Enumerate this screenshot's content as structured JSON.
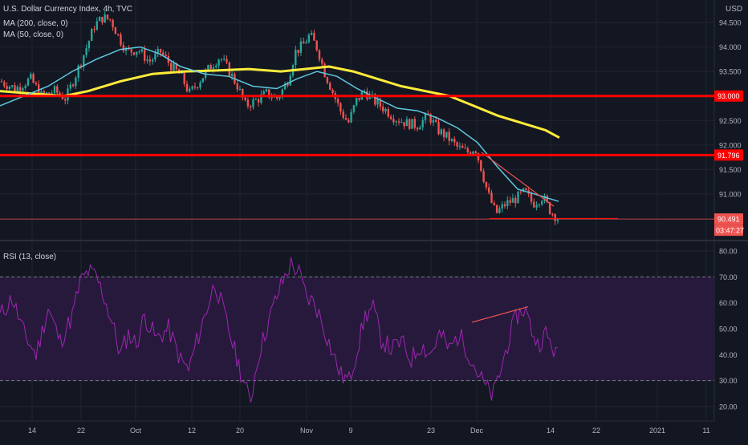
{
  "header": {
    "title": "U.S. Dollar Currency Index, 4h, TVC",
    "ma200_label": "MA (200, close, 0)",
    "ma50_label": "MA (50, close, 0)",
    "rsi_label": "RSI (13, close)",
    "currency": "USD"
  },
  "colors": {
    "background": "#131722",
    "grid": "#1f2430",
    "up": "#26a69a",
    "down": "#ef5350",
    "ma50": "#5ec8e0",
    "ma200": "#ffeb3b",
    "level": "#ff0000",
    "rsi": "#9c27b0",
    "rsi_band": "#2a1a3f",
    "axis_text": "#b2b5be"
  },
  "price_badges": {
    "level_upper": "93.000",
    "level_lower": "91.796",
    "last_price": "90.491",
    "countdown": "03:47:27"
  },
  "chart_data": [
    {
      "type": "candlestick",
      "title": "U.S. Dollar Currency Index, 4h, TVC",
      "ylabel": "USD",
      "ylim": [
        90.3,
        94.75
      ],
      "y_ticks": [
        "94.500",
        "94.000",
        "93.500",
        "93.000",
        "92.500",
        "92.000",
        "91.500",
        "91.000"
      ],
      "x_ticks": [
        "14",
        "22",
        "Oct",
        "12",
        "20",
        "Nov",
        "9",
        "23",
        "Dec",
        "14",
        "22",
        "2021",
        "11"
      ],
      "close_path": [
        [
          0,
          93.3
        ],
        [
          20,
          93.15
        ],
        [
          38,
          93.35
        ],
        [
          52,
          93.0
        ],
        [
          68,
          93.1
        ],
        [
          82,
          92.95
        ],
        [
          96,
          93.5
        ],
        [
          108,
          94.0
        ],
        [
          118,
          94.45
        ],
        [
          128,
          94.6
        ],
        [
          138,
          94.55
        ],
        [
          148,
          94.2
        ],
        [
          158,
          93.9
        ],
        [
          172,
          93.95
        ],
        [
          186,
          93.7
        ],
        [
          200,
          93.9
        ],
        [
          214,
          93.6
        ],
        [
          226,
          93.4
        ],
        [
          236,
          93.05
        ],
        [
          248,
          93.3
        ],
        [
          262,
          93.6
        ],
        [
          274,
          93.8
        ],
        [
          284,
          93.55
        ],
        [
          296,
          93.2
        ],
        [
          306,
          92.8
        ],
        [
          318,
          92.9
        ],
        [
          332,
          93.05
        ],
        [
          346,
          92.95
        ],
        [
          358,
          93.3
        ],
        [
          368,
          93.9
        ],
        [
          378,
          94.05
        ],
        [
          386,
          94.25
        ],
        [
          396,
          93.95
        ],
        [
          404,
          93.5
        ],
        [
          414,
          93.1
        ],
        [
          424,
          92.7
        ],
        [
          434,
          92.45
        ],
        [
          444,
          92.9
        ],
        [
          454,
          93.1
        ],
        [
          466,
          92.9
        ],
        [
          478,
          92.75
        ],
        [
          492,
          92.55
        ],
        [
          506,
          92.45
        ],
        [
          520,
          92.4
        ],
        [
          534,
          92.6
        ],
        [
          546,
          92.3
        ],
        [
          558,
          92.15
        ],
        [
          570,
          91.95
        ],
        [
          582,
          91.85
        ],
        [
          592,
          91.95
        ],
        [
          600,
          91.5
        ],
        [
          608,
          91.0
        ],
        [
          618,
          90.6
        ],
        [
          630,
          90.8
        ],
        [
          642,
          90.9
        ],
        [
          654,
          91.05
        ],
        [
          664,
          90.8
        ],
        [
          676,
          90.95
        ],
        [
          686,
          90.65
        ],
        [
          696,
          90.49
        ]
      ],
      "ma50_path": [
        [
          0,
          92.8
        ],
        [
          30,
          93.0
        ],
        [
          60,
          93.2
        ],
        [
          90,
          93.5
        ],
        [
          120,
          93.75
        ],
        [
          150,
          93.95
        ],
        [
          175,
          94.0
        ],
        [
          200,
          93.85
        ],
        [
          225,
          93.6
        ],
        [
          255,
          93.45
        ],
        [
          285,
          93.4
        ],
        [
          315,
          93.2
        ],
        [
          345,
          93.15
        ],
        [
          370,
          93.35
        ],
        [
          395,
          93.5
        ],
        [
          420,
          93.4
        ],
        [
          445,
          93.15
        ],
        [
          470,
          92.95
        ],
        [
          495,
          92.75
        ],
        [
          520,
          92.7
        ],
        [
          545,
          92.55
        ],
        [
          570,
          92.35
        ],
        [
          595,
          92.05
        ],
        [
          620,
          91.55
        ],
        [
          645,
          91.1
        ],
        [
          670,
          90.98
        ],
        [
          696,
          90.85
        ]
      ],
      "ma200_path": [
        [
          0,
          93.1
        ],
        [
          40,
          93.05
        ],
        [
          80,
          93.0
        ],
        [
          110,
          93.1
        ],
        [
          150,
          93.3
        ],
        [
          190,
          93.45
        ],
        [
          230,
          93.5
        ],
        [
          270,
          93.52
        ],
        [
          310,
          93.55
        ],
        [
          350,
          93.5
        ],
        [
          380,
          93.55
        ],
        [
          410,
          93.6
        ],
        [
          440,
          93.5
        ],
        [
          470,
          93.35
        ],
        [
          500,
          93.2
        ],
        [
          530,
          93.1
        ],
        [
          560,
          93.0
        ],
        [
          590,
          92.8
        ],
        [
          620,
          92.6
        ],
        [
          650,
          92.45
        ],
        [
          680,
          92.3
        ],
        [
          697,
          92.15
        ]
      ],
      "horizontal_levels": [
        93.0,
        91.796
      ],
      "support_line": {
        "y": 90.5,
        "from": 610,
        "to": 770
      },
      "wedge_line": [
        [
          600,
          91.85
        ],
        [
          690,
          90.75
        ]
      ],
      "last_price": 90.491
    },
    {
      "type": "line",
      "title": "RSI (13, close)",
      "ylim": [
        15,
        82
      ],
      "y_ticks": [
        "80.00",
        "70.00",
        "60.00",
        "50.00",
        "40.00",
        "30.00",
        "20.00"
      ],
      "band": [
        30,
        70
      ],
      "values_path": [
        [
          0,
          55
        ],
        [
          15,
          62
        ],
        [
          30,
          48
        ],
        [
          45,
          40
        ],
        [
          60,
          58
        ],
        [
          75,
          45
        ],
        [
          90,
          55
        ],
        [
          100,
          68
        ],
        [
          110,
          72
        ],
        [
          120,
          70
        ],
        [
          130,
          62
        ],
        [
          140,
          52
        ],
        [
          150,
          40
        ],
        [
          160,
          48
        ],
        [
          170,
          44
        ],
        [
          180,
          55
        ],
        [
          195,
          46
        ],
        [
          210,
          50
        ],
        [
          225,
          38
        ],
        [
          235,
          34
        ],
        [
          245,
          45
        ],
        [
          255,
          55
        ],
        [
          268,
          68
        ],
        [
          280,
          55
        ],
        [
          292,
          42
        ],
        [
          305,
          28
        ],
        [
          312,
          22
        ],
        [
          322,
          40
        ],
        [
          332,
          50
        ],
        [
          342,
          60
        ],
        [
          352,
          68
        ],
        [
          362,
          75
        ],
        [
          372,
          72
        ],
        [
          382,
          62
        ],
        [
          392,
          60
        ],
        [
          402,
          52
        ],
        [
          415,
          40
        ],
        [
          425,
          32
        ],
        [
          435,
          30
        ],
        [
          445,
          42
        ],
        [
          455,
          55
        ],
        [
          465,
          58
        ],
        [
          475,
          46
        ],
        [
          488,
          42
        ],
        [
          500,
          45
        ],
        [
          512,
          38
        ],
        [
          524,
          44
        ],
        [
          536,
          40
        ],
        [
          548,
          48
        ],
        [
          560,
          42
        ],
        [
          572,
          48
        ],
        [
          582,
          42
        ],
        [
          592,
          35
        ],
        [
          604,
          28
        ],
        [
          614,
          24
        ],
        [
          624,
          34
        ],
        [
          634,
          46
        ],
        [
          644,
          55
        ],
        [
          654,
          58
        ],
        [
          662,
          50
        ],
        [
          670,
          44
        ],
        [
          680,
          48
        ],
        [
          690,
          42
        ],
        [
          697,
          38
        ]
      ],
      "divergence_line": [
        [
          588,
          52.5
        ],
        [
          658,
          58.5
        ]
      ]
    }
  ]
}
